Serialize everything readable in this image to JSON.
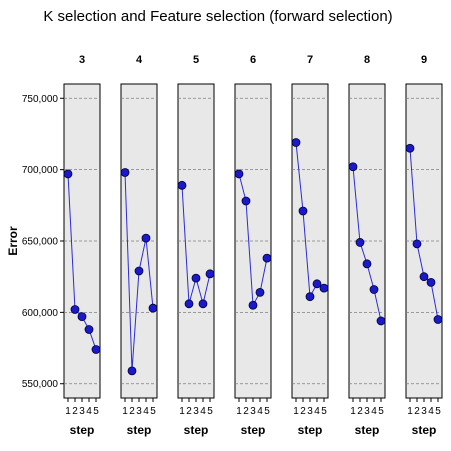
{
  "chart_data": {
    "type": "line",
    "title": "K selection and Feature selection (forward selection)",
    "xlabel": "step",
    "ylabel": "Error",
    "panels": [
      "3",
      "4",
      "5",
      "6",
      "7",
      "8",
      "9"
    ],
    "x": [
      1,
      2,
      3,
      4,
      5
    ],
    "x_tick_labels": [
      "1",
      "2",
      "3",
      "4",
      "5"
    ],
    "ylim": [
      540000,
      760000
    ],
    "y_ticks": [
      550000,
      600000,
      650000,
      700000,
      750000
    ],
    "y_tick_labels": [
      "550,000",
      "600,000",
      "650,000",
      "700,000",
      "750,000"
    ],
    "series": [
      {
        "panel": "3",
        "values": [
          697000,
          602000,
          597000,
          588000,
          574000
        ]
      },
      {
        "panel": "4",
        "values": [
          698000,
          559000,
          629000,
          652000,
          603000
        ]
      },
      {
        "panel": "5",
        "values": [
          689000,
          606000,
          624000,
          606000,
          627000
        ]
      },
      {
        "panel": "6",
        "values": [
          697000,
          678000,
          605000,
          614000,
          638000
        ]
      },
      {
        "panel": "7",
        "values": [
          719000,
          671000,
          611000,
          620000,
          617000
        ]
      },
      {
        "panel": "8",
        "values": [
          702000,
          649000,
          634000,
          616000,
          594000
        ]
      },
      {
        "panel": "9",
        "values": [
          715000,
          648000,
          625000,
          621000,
          595000
        ]
      }
    ],
    "grid": "horizontal dashed",
    "colors": {
      "line": "#2b2bd9",
      "marker": "#1a1acc",
      "panel_bg": "#e8e8e8",
      "grid": "#7f7f7f"
    }
  }
}
